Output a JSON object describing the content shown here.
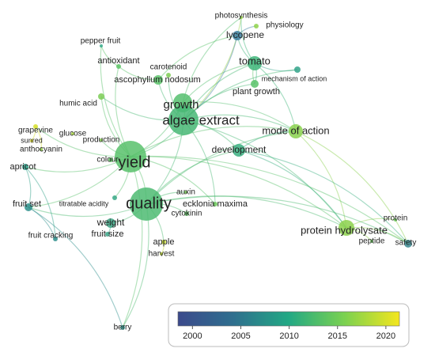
{
  "nodes": [
    {
      "label": "photosynthesis"
    },
    {
      "label": "physiology"
    },
    {
      "label": "lycopene"
    },
    {
      "label": "pepper fruit"
    },
    {
      "label": "tomato"
    },
    {
      "label": "antioxidant"
    },
    {
      "label": "carotenoid"
    },
    {
      "label": "mechanism of action"
    },
    {
      "label": "ascophyllum nodosum"
    },
    {
      "label": "plant growth"
    },
    {
      "label": "humic acid"
    },
    {
      "label": "growth"
    },
    {
      "label": "algae extract"
    },
    {
      "label": "mode of action"
    },
    {
      "label": "grapevine"
    },
    {
      "label": "glucose"
    },
    {
      "label": "sunred"
    },
    {
      "label": "production"
    },
    {
      "label": "anthocyanin"
    },
    {
      "label": "development"
    },
    {
      "label": "colour"
    },
    {
      "label": "yield"
    },
    {
      "label": "apricot"
    },
    {
      "label": "auxin"
    },
    {
      "label": "ecklonia maxima"
    },
    {
      "label": "cytokinin"
    },
    {
      "label": "titratable acidity"
    },
    {
      "label": "quality"
    },
    {
      "label": "fruit set"
    },
    {
      "label": "weight"
    },
    {
      "label": "protein"
    },
    {
      "label": "protein hydrolysate"
    },
    {
      "label": "fruit size"
    },
    {
      "label": "fruit cracking"
    },
    {
      "label": "peptide"
    },
    {
      "label": "safety"
    },
    {
      "label": "apple"
    },
    {
      "label": "harvest"
    },
    {
      "label": "berry"
    }
  ],
  "colorbar": {
    "range": [
      1998.5,
      2021.4
    ],
    "ticks": [
      2000,
      2005,
      2010,
      2015,
      2020
    ]
  }
}
